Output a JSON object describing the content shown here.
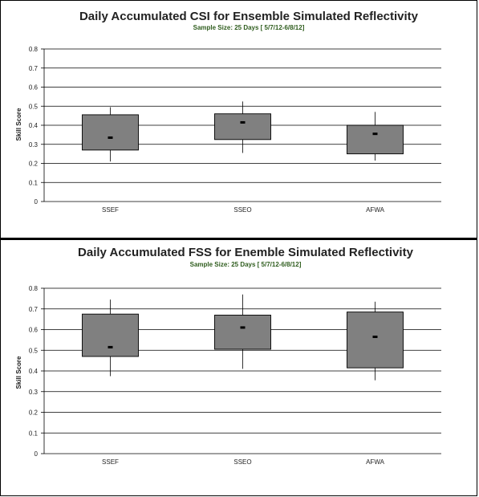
{
  "chart_data": [
    {
      "type": "box",
      "title": "Daily Accumulated CSI for Ensemble Simulated Reflectivity",
      "subtitle": "Sample Size: 25 Days [ 5/7/12-6/8/12]",
      "xlabel": "",
      "ylabel": "Skill Score",
      "ylim": [
        0,
        0.8
      ],
      "yticks": [
        "0",
        "0.1",
        "0.2",
        "0.3",
        "0.4",
        "0.5",
        "0.6",
        "0.7",
        "0.8"
      ],
      "grid": true,
      "categories": [
        "SSEF",
        "SSEO",
        "AFWA"
      ],
      "boxes": [
        {
          "whisker_low": 0.21,
          "q1": 0.27,
          "median": 0.335,
          "q3": 0.455,
          "whisker_high": 0.495
        },
        {
          "whisker_low": 0.255,
          "q1": 0.325,
          "median": 0.415,
          "q3": 0.46,
          "whisker_high": 0.525
        },
        {
          "whisker_low": 0.215,
          "q1": 0.25,
          "median": 0.355,
          "q3": 0.4,
          "whisker_high": 0.47
        }
      ],
      "box_color": "#808080"
    },
    {
      "type": "box",
      "title": "Daily Accumulated FSS for Enemble Simulated Reflectivity",
      "subtitle": "Sample Size: 25 Days [ 5/7/12-6/8/12]",
      "xlabel": "",
      "ylabel": "Skill Score",
      "ylim": [
        0,
        0.8
      ],
      "yticks": [
        "0",
        "0.1",
        "0.2",
        "0.3",
        "0.4",
        "0.5",
        "0.6",
        "0.7",
        "0.8"
      ],
      "grid": true,
      "categories": [
        "SSEF",
        "SSEO",
        "AFWA"
      ],
      "boxes": [
        {
          "whisker_low": 0.375,
          "q1": 0.47,
          "median": 0.515,
          "q3": 0.675,
          "whisker_high": 0.745
        },
        {
          "whisker_low": 0.41,
          "q1": 0.505,
          "median": 0.61,
          "q3": 0.67,
          "whisker_high": 0.77
        },
        {
          "whisker_low": 0.355,
          "q1": 0.415,
          "median": 0.565,
          "q3": 0.685,
          "whisker_high": 0.735
        }
      ],
      "box_color": "#808080"
    }
  ]
}
